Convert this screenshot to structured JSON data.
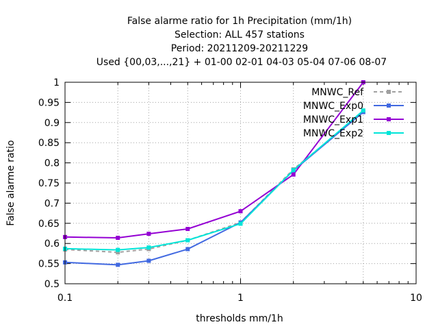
{
  "chart_data": {
    "type": "line",
    "title_lines": [
      "False alarme ratio  for 1h Precipitation (mm/1h)",
      "Selection: ALL    457 stations",
      "Period: 20211209-20211229",
      "Used {00,03,...,21} + 01-00 02-01 04-03 05-04 07-06 08-07"
    ],
    "xlabel": "thresholds mm/1h",
    "ylabel": "False alarme ratio",
    "x_scale": "log",
    "xlim": [
      0.1,
      10
    ],
    "ylim": [
      0.5,
      1.0
    ],
    "x_ticks": [
      {
        "value": 0.1,
        "label": "0.1"
      },
      {
        "value": 1,
        "label": "1"
      },
      {
        "value": 10,
        "label": "10"
      }
    ],
    "y_ticks": [
      {
        "value": 0.5,
        "label": "0.5"
      },
      {
        "value": 0.55,
        "label": "0.55"
      },
      {
        "value": 0.6,
        "label": "0.6"
      },
      {
        "value": 0.65,
        "label": "0.65"
      },
      {
        "value": 0.7,
        "label": "0.7"
      },
      {
        "value": 0.75,
        "label": "0.75"
      },
      {
        "value": 0.8,
        "label": "0.8"
      },
      {
        "value": 0.85,
        "label": "0.85"
      },
      {
        "value": 0.9,
        "label": "0.9"
      },
      {
        "value": 0.95,
        "label": "0.95"
      },
      {
        "value": 1,
        "label": "1"
      }
    ],
    "minor_x_ticks": [
      0.2,
      0.3,
      0.4,
      0.5,
      0.6,
      0.7,
      0.8,
      0.9,
      2,
      3,
      4,
      5,
      6,
      7,
      8,
      9
    ],
    "grid_x": [
      0.2,
      0.3,
      0.5,
      1,
      2,
      5
    ],
    "grid": true,
    "legend_position": "top-right",
    "series": [
      {
        "name": "MNWC_Ref",
        "color": "#a0a0a0",
        "dashed": true,
        "x": [
          0.1,
          0.2,
          0.3,
          0.5,
          1,
          2,
          5
        ],
        "y": [
          0.585,
          0.578,
          0.586,
          0.608,
          0.652,
          0.784,
          0.926
        ]
      },
      {
        "name": "MNWC_Exp0",
        "color": "#4169e1",
        "dashed": false,
        "x": [
          0.1,
          0.2,
          0.3,
          0.5,
          1,
          2,
          5
        ],
        "y": [
          0.553,
          0.547,
          0.557,
          0.586,
          0.652,
          0.781,
          0.926
        ]
      },
      {
        "name": "MNWC_Exp1",
        "color": "#9400d3",
        "dashed": false,
        "x": [
          0.1,
          0.2,
          0.3,
          0.5,
          1,
          2,
          5
        ],
        "y": [
          0.616,
          0.614,
          0.624,
          0.636,
          0.68,
          0.771,
          1.0
        ]
      },
      {
        "name": "MNWC_Exp2",
        "color": "#00e5d8",
        "dashed": false,
        "x": [
          0.1,
          0.2,
          0.3,
          0.5,
          1,
          2,
          5
        ],
        "y": [
          0.587,
          0.584,
          0.59,
          0.608,
          0.649,
          0.782,
          0.93
        ]
      }
    ]
  }
}
